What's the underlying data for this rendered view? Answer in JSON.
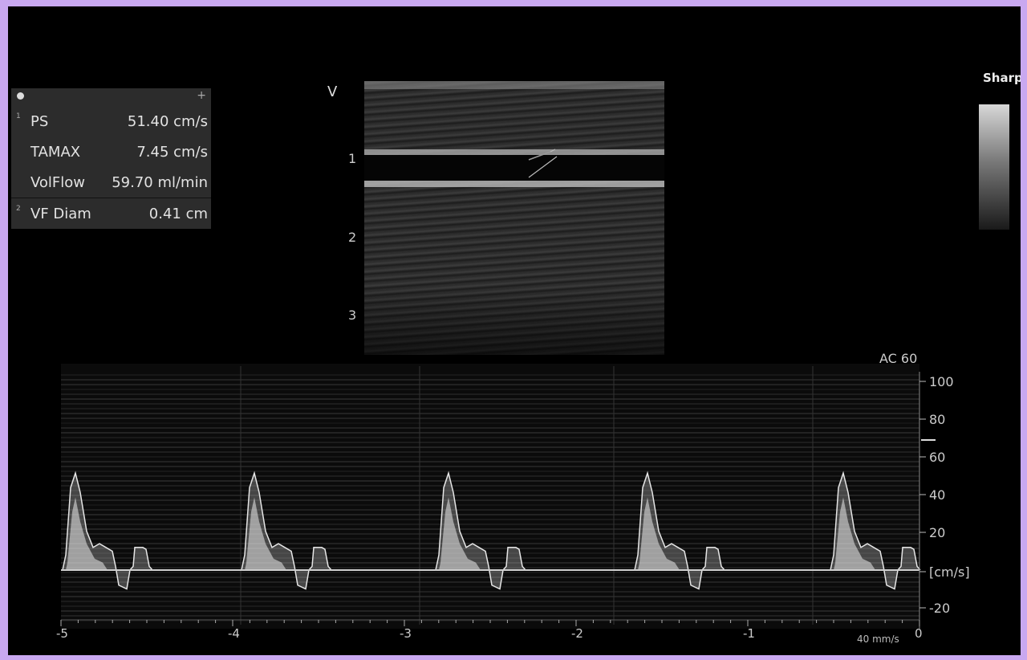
{
  "measurements": {
    "rows": [
      {
        "index": "1",
        "label": "PS",
        "value": "51.40 cm/s"
      },
      {
        "index": "",
        "label": "TAMAX",
        "value": "7.45 cm/s"
      },
      {
        "index": "",
        "label": "VolFlow",
        "value": "59.70 ml/min"
      },
      {
        "index": "2",
        "label": "VF Diam",
        "value": "0.41 cm"
      }
    ],
    "header_icon": "circle-icon",
    "header_action_icon": "plus-icon"
  },
  "bmode": {
    "orientation_marker": "V",
    "depth_ticks": [
      "1",
      "2",
      "3"
    ]
  },
  "grayscale_map": {
    "label": "Sharp"
  },
  "spectral": {
    "angle_correction": "AC 60",
    "velocity_ticks": [
      "100",
      "80",
      "60",
      "40",
      "20",
      "[cm/s]",
      "-20"
    ],
    "time_ticks": [
      "-5",
      "-4",
      "-3",
      "-2",
      "-1",
      "0"
    ],
    "sweep_speed": "40 mm/s",
    "peak_velocity_cm_s": 51.4,
    "cycles": 5
  },
  "colors": {
    "background": "#000000",
    "border": "#c9a8f0",
    "text": "#dddddd",
    "panel": "#2c2c2c"
  }
}
